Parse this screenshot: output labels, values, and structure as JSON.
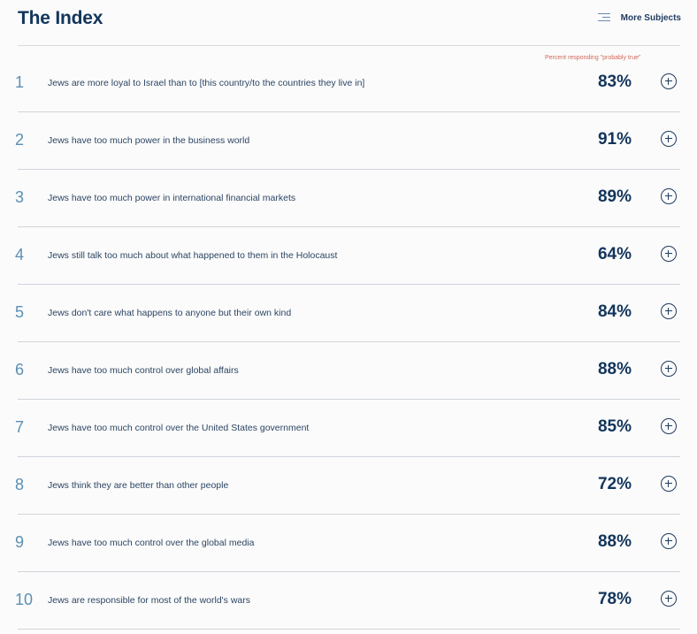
{
  "header": {
    "title": "The Index",
    "more_subjects_label": "More Subjects",
    "menu_icon": "menu-icon"
  },
  "column_note": "Percent responding \"probably true\"",
  "rows": [
    {
      "rank": "1",
      "statement": "Jews are more loyal to Israel than to [this country/to the countries they live in]",
      "percent": "83%"
    },
    {
      "rank": "2",
      "statement": "Jews have too much power in the business world",
      "percent": "91%"
    },
    {
      "rank": "3",
      "statement": "Jews have too much power in international financial markets",
      "percent": "89%"
    },
    {
      "rank": "4",
      "statement": "Jews still talk too much about what happened to them in the Holocaust",
      "percent": "64%"
    },
    {
      "rank": "5",
      "statement": "Jews don't care what happens to anyone but their own kind",
      "percent": "84%"
    },
    {
      "rank": "6",
      "statement": "Jews have too much control over global affairs",
      "percent": "88%"
    },
    {
      "rank": "7",
      "statement": "Jews have too much control over the United States government",
      "percent": "85%"
    },
    {
      "rank": "8",
      "statement": "Jews think they are better than other people",
      "percent": "72%"
    },
    {
      "rank": "9",
      "statement": "Jews have too much control over the global media",
      "percent": "88%"
    },
    {
      "rank": "10",
      "statement": "Jews are responsible for most of the world's wars",
      "percent": "78%"
    }
  ],
  "colors": {
    "title": "#12355b",
    "rank": "#5b8fb3",
    "note": "#d06a5a"
  },
  "icons": {
    "expand": "plus-circle-icon"
  }
}
